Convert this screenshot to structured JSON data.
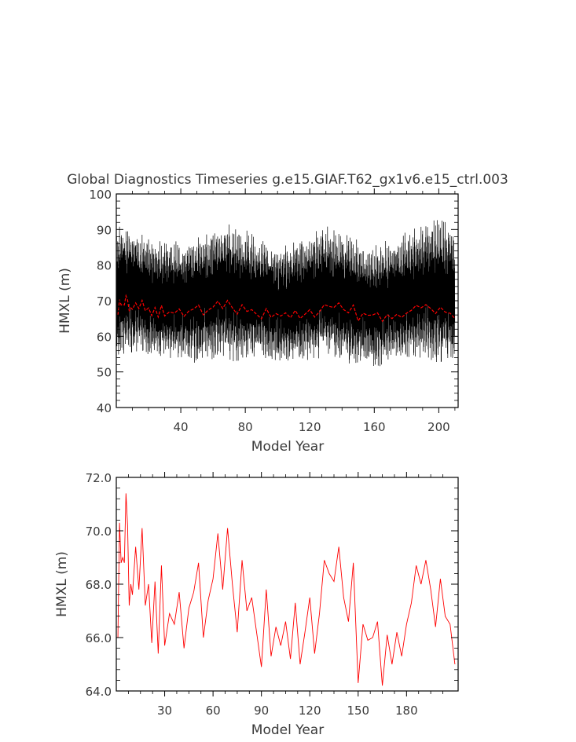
{
  "title": "Global Diagnostics Timeseries g.e15.GIAF.T62_gx1v6.e15_ctrl.003",
  "chart_data": [
    {
      "type": "line",
      "title": "Global Diagnostics Timeseries g.e15.GIAF.T62_gx1v6.e15_ctrl.003",
      "xlabel": "Model Year",
      "ylabel": "HMXL (m)",
      "xlim": [
        0,
        212
      ],
      "ylim": [
        40,
        100
      ],
      "xticks": [
        "40",
        "80",
        "120",
        "160",
        "200"
      ],
      "yticks": [
        "40",
        "50",
        "60",
        "70",
        "80",
        "90",
        "100"
      ],
      "series": [
        {
          "description": "monthly values (black), approximate envelope per model year",
          "color": "#000000",
          "x": [
            1,
            5,
            10,
            15,
            20,
            25,
            30,
            35,
            40,
            45,
            50,
            55,
            60,
            65,
            70,
            75,
            80,
            85,
            90,
            95,
            100,
            105,
            110,
            115,
            120,
            125,
            130,
            135,
            140,
            145,
            150,
            155,
            160,
            165,
            170,
            175,
            180,
            185,
            190,
            195,
            200,
            205,
            210
          ],
          "max": [
            92,
            93,
            91,
            90,
            89,
            88,
            87,
            88,
            87,
            88,
            89,
            90,
            91,
            92,
            93,
            92,
            91,
            90,
            88,
            87,
            86,
            87,
            88,
            89,
            90,
            91,
            92,
            91,
            90,
            89,
            88,
            87,
            86,
            87,
            88,
            89,
            90,
            91,
            92,
            93,
            94,
            93,
            92
          ],
          "min": [
            52,
            53,
            54,
            54,
            53,
            52,
            53,
            52,
            53,
            52,
            51,
            52,
            52,
            53,
            52,
            51,
            52,
            53,
            53,
            52,
            52,
            51,
            51,
            52,
            52,
            52,
            53,
            53,
            52,
            51,
            51,
            51,
            50,
            50,
            51,
            51,
            52,
            52,
            52,
            52,
            51,
            51,
            52
          ]
        },
        {
          "description": "annual mean (red)",
          "color": "#ff0000",
          "x": [
            1,
            2,
            3,
            4,
            5,
            6,
            7,
            8,
            9,
            10,
            12,
            14,
            16,
            18,
            20,
            22,
            24,
            26,
            28,
            30,
            33,
            36,
            39,
            42,
            45,
            48,
            51,
            54,
            57,
            60,
            63,
            66,
            69,
            72,
            75,
            78,
            81,
            84,
            87,
            90,
            93,
            96,
            99,
            102,
            105,
            108,
            111,
            114,
            117,
            120,
            123,
            126,
            129,
            132,
            135,
            138,
            141,
            144,
            147,
            150,
            153,
            156,
            159,
            162,
            165,
            168,
            171,
            174,
            177,
            180,
            183,
            186,
            189,
            192,
            195,
            198,
            201,
            204,
            207,
            210
          ],
          "values": [
            66.0,
            70.3,
            68.8,
            69.0,
            68.8,
            71.4,
            70.2,
            67.2,
            68.0,
            67.6,
            69.4,
            67.8,
            70.1,
            67.2,
            68.0,
            65.8,
            68.1,
            65.4,
            68.7,
            65.7,
            66.9,
            66.5,
            67.7,
            65.6,
            67.1,
            67.7,
            68.8,
            66.0,
            67.4,
            68.2,
            69.9,
            67.8,
            70.1,
            68.0,
            66.2,
            68.9,
            67.0,
            67.5,
            66.2,
            64.9,
            67.8,
            65.3,
            66.4,
            65.7,
            66.6,
            65.2,
            67.3,
            65.0,
            66.2,
            67.5,
            65.4,
            66.9,
            68.9,
            68.4,
            68.1,
            69.4,
            67.5,
            66.6,
            68.8,
            64.3,
            66.5,
            65.9,
            66.0,
            66.6,
            64.2,
            66.1,
            65.0,
            66.2,
            65.3,
            66.5,
            67.3,
            68.7,
            68.0,
            68.9,
            67.8,
            66.4,
            68.2,
            66.8,
            66.5,
            65.0
          ]
        }
      ]
    },
    {
      "type": "line",
      "xlabel": "Model Year",
      "ylabel": "HMXL (m)",
      "xlim": [
        0,
        212
      ],
      "ylim": [
        64.0,
        72.0
      ],
      "xticks": [
        "30",
        "60",
        "90",
        "120",
        "150",
        "180"
      ],
      "yticks": [
        "64.0",
        "66.0",
        "68.0",
        "70.0",
        "72.0"
      ],
      "series": [
        {
          "description": "annual mean (red)",
          "color": "#ff0000",
          "x": [
            1,
            2,
            3,
            4,
            5,
            6,
            7,
            8,
            9,
            10,
            12,
            14,
            16,
            18,
            20,
            22,
            24,
            26,
            28,
            30,
            33,
            36,
            39,
            42,
            45,
            48,
            51,
            54,
            57,
            60,
            63,
            66,
            69,
            72,
            75,
            78,
            81,
            84,
            87,
            90,
            93,
            96,
            99,
            102,
            105,
            108,
            111,
            114,
            117,
            120,
            123,
            126,
            129,
            132,
            135,
            138,
            141,
            144,
            147,
            150,
            153,
            156,
            159,
            162,
            165,
            168,
            171,
            174,
            177,
            180,
            183,
            186,
            189,
            192,
            195,
            198,
            201,
            204,
            207,
            210
          ],
          "values": [
            66.0,
            70.3,
            68.8,
            69.0,
            68.8,
            71.4,
            70.2,
            67.2,
            68.0,
            67.6,
            69.4,
            67.8,
            70.1,
            67.2,
            68.0,
            65.8,
            68.1,
            65.4,
            68.7,
            65.7,
            66.9,
            66.5,
            67.7,
            65.6,
            67.1,
            67.7,
            68.8,
            66.0,
            67.4,
            68.2,
            69.9,
            67.8,
            70.1,
            68.0,
            66.2,
            68.9,
            67.0,
            67.5,
            66.2,
            64.9,
            67.8,
            65.3,
            66.4,
            65.7,
            66.6,
            65.2,
            67.3,
            65.0,
            66.2,
            67.5,
            65.4,
            66.9,
            68.9,
            68.4,
            68.1,
            69.4,
            67.5,
            66.6,
            68.8,
            64.3,
            66.5,
            65.9,
            66.0,
            66.6,
            64.2,
            66.1,
            65.0,
            66.2,
            65.3,
            66.5,
            67.3,
            68.7,
            68.0,
            68.9,
            67.8,
            66.4,
            68.2,
            66.8,
            66.5,
            65.0
          ]
        }
      ]
    }
  ]
}
